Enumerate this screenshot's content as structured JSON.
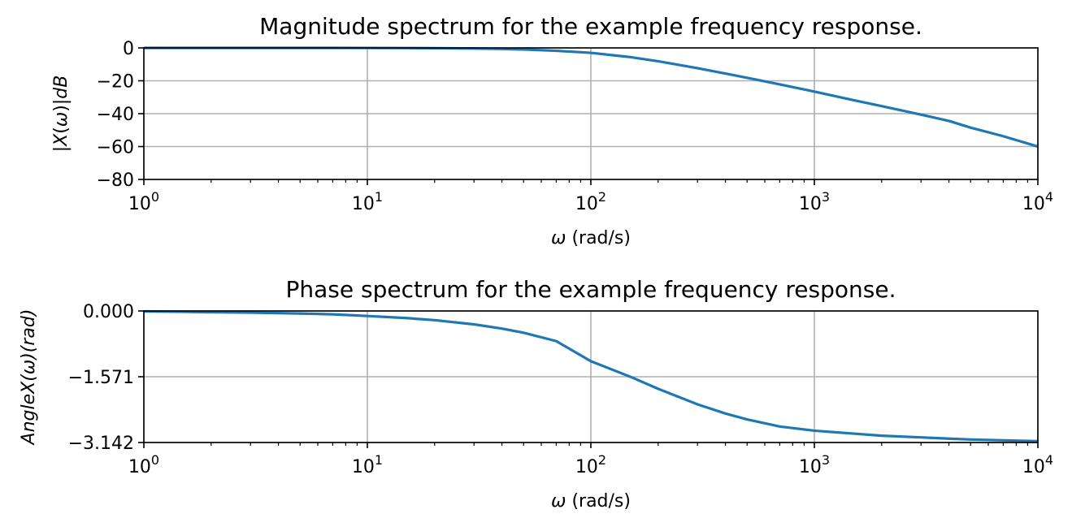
{
  "chart_data": [
    {
      "type": "line",
      "title": "Magnitude spectrum for the example frequency response.",
      "xlabel_symbol": "ω",
      "xlabel_unit": " (rad/s)",
      "ylabel": "|X(ω)|dB",
      "x_scale": "log",
      "xlim": [
        1,
        10000
      ],
      "ylim": [
        -80,
        0
      ],
      "grid": true,
      "x_ticks": [
        {
          "base": "10",
          "exp": "0"
        },
        {
          "base": "10",
          "exp": "1"
        },
        {
          "base": "10",
          "exp": "2"
        },
        {
          "base": "10",
          "exp": "3"
        },
        {
          "base": "10",
          "exp": "4"
        }
      ],
      "y_ticks": [
        {
          "value": 0,
          "label": "0"
        },
        {
          "value": -20,
          "label": "−20"
        },
        {
          "value": -40,
          "label": "−40"
        },
        {
          "value": -60,
          "label": "−60"
        },
        {
          "value": -80,
          "label": "−80"
        }
      ],
      "series": [
        {
          "color": "#1f77b4",
          "x": [
            1,
            1.5,
            2,
            3,
            5,
            7,
            10,
            15,
            20,
            30,
            40,
            50,
            70,
            100,
            150,
            200,
            300,
            400,
            500,
            700,
            1000,
            1500,
            2000,
            3000,
            4000,
            5000,
            7000,
            10000
          ],
          "y": [
            0,
            0,
            0,
            0,
            0,
            0,
            -0.04,
            -0.1,
            -0.17,
            -0.37,
            -0.64,
            -0.97,
            -1.76,
            -3.0,
            -5.6,
            -8.1,
            -12.3,
            -15.6,
            -18.2,
            -22.2,
            -26.6,
            -31.8,
            -35.4,
            -40.6,
            -44.4,
            -48.5,
            -53.7,
            -60.0
          ]
        }
      ]
    },
    {
      "type": "line",
      "title": "Phase spectrum for the example frequency response.",
      "xlabel_symbol": "ω",
      "xlabel_unit": " (rad/s)",
      "ylabel": "AngleX(ω)(rad)",
      "x_scale": "log",
      "xlim": [
        1,
        10000
      ],
      "ylim": [
        -3.142,
        0
      ],
      "grid": true,
      "x_ticks": [
        {
          "base": "10",
          "exp": "0"
        },
        {
          "base": "10",
          "exp": "1"
        },
        {
          "base": "10",
          "exp": "2"
        },
        {
          "base": "10",
          "exp": "3"
        },
        {
          "base": "10",
          "exp": "4"
        }
      ],
      "y_ticks": [
        {
          "value": 0,
          "label": "0.000"
        },
        {
          "value": -1.571,
          "label": "−1.571"
        },
        {
          "value": -3.142,
          "label": "−3.142"
        }
      ],
      "series": [
        {
          "color": "#1f77b4",
          "x": [
            1,
            1.5,
            2,
            3,
            5,
            7,
            10,
            15,
            20,
            30,
            40,
            50,
            70,
            100,
            150,
            200,
            300,
            400,
            500,
            700,
            1000,
            1500,
            2000,
            3000,
            4000,
            5000,
            7000,
            10000
          ],
          "y": [
            -0.01,
            -0.02,
            -0.03,
            -0.04,
            -0.06,
            -0.08,
            -0.12,
            -0.17,
            -0.22,
            -0.32,
            -0.42,
            -0.52,
            -0.72,
            -1.2,
            -1.57,
            -1.86,
            -2.23,
            -2.45,
            -2.59,
            -2.76,
            -2.86,
            -2.93,
            -2.98,
            -3.02,
            -3.05,
            -3.07,
            -3.09,
            -3.11
          ]
        }
      ]
    }
  ]
}
